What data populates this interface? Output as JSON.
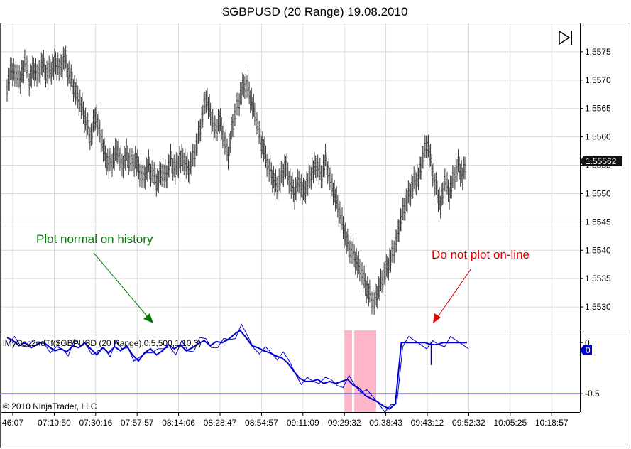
{
  "title": "$GBPUSD (20 Range)  19.08.2010",
  "copyright": "© 2010 NinjaTrader, LLC",
  "colors": {
    "price_bars": "#3a3a3a",
    "oscillator": "#0000cc",
    "annotation_green": "#007a00",
    "annotation_red": "#e00000",
    "highlight": "#ffb6c8",
    "grid": "#d9d9d9"
  },
  "chart_data": [
    {
      "type": "line",
      "panel": "price",
      "series": [
        {
          "values": [
            1.5569,
            1.5572,
            1.5571,
            1.557,
            1.5573,
            1.557,
            1.5572,
            1.5571,
            1.5573,
            1.5571,
            1.5572,
            1.5573,
            1.5572,
            1.5574,
            1.5571,
            1.5569,
            1.5567,
            1.5565,
            1.5562,
            1.556,
            1.5564,
            1.5561,
            1.5557,
            1.5555,
            1.5556,
            1.5558,
            1.5555,
            1.5557,
            1.5555,
            1.5556,
            1.5554,
            1.5553,
            1.5555,
            1.5553,
            1.5552,
            1.5554,
            1.5553,
            1.5556,
            1.5554,
            1.5556,
            1.5556,
            1.5554,
            1.5556,
            1.5559,
            1.5563,
            1.5567,
            1.5564,
            1.5561,
            1.5563,
            1.556,
            1.5557,
            1.5562,
            1.5565,
            1.5568,
            1.557,
            1.5567,
            1.5564,
            1.556,
            1.5558,
            1.5555,
            1.5553,
            1.5551,
            1.5553,
            1.5555,
            1.5552,
            1.555,
            1.5552,
            1.555,
            1.5552,
            1.5554,
            1.5555,
            1.5553,
            1.5556,
            1.5553,
            1.555,
            1.5547,
            1.5544,
            1.5541,
            1.554,
            1.5538,
            1.5536,
            1.5534,
            1.5532,
            1.5531,
            1.5533,
            1.5535,
            1.5537,
            1.5539,
            1.5542,
            1.5545,
            1.5548,
            1.555,
            1.5552,
            1.5553,
            1.5556,
            1.5559,
            1.5555,
            1.5551,
            1.5548,
            1.5552,
            1.555,
            1.5553,
            1.5555,
            1.5553,
            1.5556
          ]
        }
      ],
      "ylim": [
        1.5526,
        1.558
      ],
      "y_ticks": [
        "1.5575",
        "1.5570",
        "1.5565",
        "1.5560",
        "1.5555",
        "1.5550",
        "1.5545",
        "1.5540",
        "1.5535",
        "1.5530"
      ],
      "last_price": "1.55562",
      "annotations": [
        "Plot normal on history",
        "Do not plot on-line"
      ],
      "grid": true
    },
    {
      "type": "line",
      "panel": "oscillator",
      "title": "iMyOsc2ndTf($GBPUSD (20 Range),0,5,500,1,10,3)",
      "series": [
        {
          "values": [
            0.05,
            0.02,
            -0.03,
            0.0,
            -0.05,
            -0.02,
            0.01,
            -0.04,
            -0.08,
            -0.06,
            -0.09,
            -0.03,
            -0.05,
            0.0,
            -0.06,
            -0.12,
            -0.05,
            -0.1,
            -0.04,
            -0.08,
            -0.03,
            -0.12,
            -0.18,
            -0.1,
            -0.06,
            -0.12,
            -0.08,
            -0.02,
            -0.06,
            -0.02,
            -0.08,
            -0.05,
            -0.01,
            0.02,
            -0.03,
            0.01,
            0.0,
            0.03,
            0.08,
            0.12,
            0.05,
            -0.03,
            -0.05,
            -0.08,
            -0.1,
            -0.13,
            -0.15,
            -0.2,
            -0.28,
            -0.35,
            -0.38,
            -0.38,
            -0.36,
            -0.4,
            -0.38,
            -0.4,
            -0.38,
            -0.36,
            -0.42,
            -0.45,
            -0.52,
            -0.55,
            -0.58,
            -0.62,
            -0.65,
            -0.6,
            0.0,
            0.0,
            0.0,
            0.0,
            0.0,
            -0.02,
            -0.02,
            0.0,
            0.0,
            0.0,
            0.0,
            0.0
          ]
        }
      ],
      "ylim": [
        -0.68,
        0.12
      ],
      "y_ticks": [
        "0",
        "-0.5"
      ],
      "last_value": "0",
      "reference_levels": [
        -0.5
      ],
      "grid": true
    }
  ],
  "x_ticks": [
    "46:07",
    "07:10:50",
    "07:30:16",
    "07:57:57",
    "08:14:06",
    "08:28:47",
    "08:54:57",
    "09:11:09",
    "09:29:32",
    "09:38:43",
    "09:43:12",
    "09:52:32",
    "10:05:25",
    "10:18:57"
  ]
}
